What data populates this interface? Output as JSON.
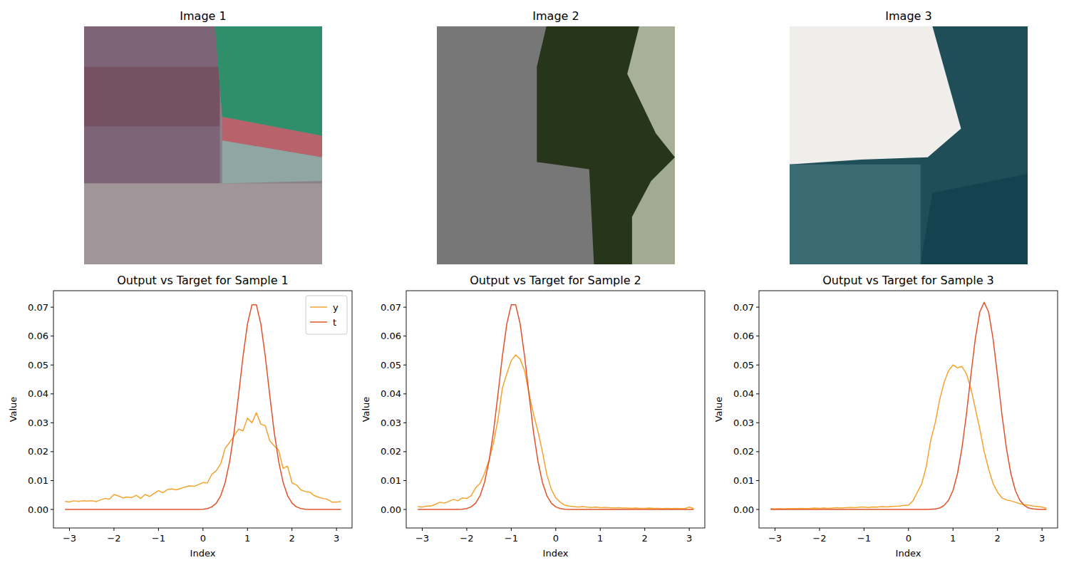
{
  "images": [
    {
      "title": "Image 1"
    },
    {
      "title": "Image 2"
    },
    {
      "title": "Image 3"
    }
  ],
  "chart_data": [
    {
      "type": "line",
      "title": "Output vs Target for Sample 1",
      "x_label": "Index",
      "y_label": "Value",
      "x": [
        -3.1,
        -3,
        -2.9,
        -2.8,
        -2.7,
        -2.6,
        -2.5,
        -2.4,
        -2.3,
        -2.2,
        -2.1,
        -2,
        -1.9,
        -1.8,
        -1.7,
        -1.6,
        -1.5,
        -1.4,
        -1.3,
        -1.2,
        -1.1,
        -1,
        -0.9,
        -0.8,
        -0.7,
        -0.6,
        -0.5,
        -0.4,
        -0.3,
        -0.2,
        -0.1,
        0,
        0.1,
        0.2,
        0.3,
        0.4,
        0.5,
        0.6,
        0.7,
        0.8,
        0.9,
        1,
        1.1,
        1.2,
        1.3,
        1.4,
        1.5,
        1.6,
        1.7,
        1.8,
        1.9,
        2,
        2.1,
        2.2,
        2.3,
        2.4,
        2.5,
        2.6,
        2.7,
        2.8,
        2.9,
        3,
        3.1
      ],
      "series": [
        {
          "name": "y",
          "color": "#f4a32f",
          "values": [
            0.0028,
            0.0026,
            0.003,
            0.0028,
            0.003,
            0.0029,
            0.003,
            0.0027,
            0.0033,
            0.0038,
            0.0036,
            0.0052,
            0.0047,
            0.004,
            0.0043,
            0.0041,
            0.0049,
            0.0038,
            0.0052,
            0.0045,
            0.0055,
            0.0065,
            0.0058,
            0.0069,
            0.0071,
            0.0068,
            0.0073,
            0.0078,
            0.0082,
            0.008,
            0.0086,
            0.0093,
            0.0092,
            0.0122,
            0.0134,
            0.0158,
            0.0212,
            0.0232,
            0.0255,
            0.0278,
            0.0272,
            0.0316,
            0.03,
            0.0335,
            0.0295,
            0.029,
            0.0238,
            0.022,
            0.0205,
            0.0142,
            0.015,
            0.0092,
            0.0085,
            0.0068,
            0.0062,
            0.006,
            0.0048,
            0.0042,
            0.0038,
            0.0035,
            0.0025,
            0.0026,
            0.0027
          ]
        },
        {
          "name": "t",
          "color": "#e1522b",
          "values": [
            0,
            0,
            0,
            0,
            0,
            0,
            0,
            0,
            0,
            0,
            0,
            0,
            0,
            0,
            0,
            0,
            0,
            0,
            0,
            0,
            0,
            0,
            0,
            0,
            0,
            0,
            0,
            0,
            0,
            0,
            0,
            0.0001,
            0.0003,
            0.0009,
            0.0022,
            0.0048,
            0.0094,
            0.0167,
            0.0268,
            0.0396,
            0.053,
            0.0642,
            0.0708,
            0.0708,
            0.0642,
            0.053,
            0.0396,
            0.0268,
            0.0167,
            0.0094,
            0.0048,
            0.0022,
            0.0009,
            0.0003,
            0.0001,
            0,
            0,
            0,
            0,
            0,
            0,
            0,
            0
          ]
        }
      ],
      "xlim": [
        -3.36,
        3.35
      ],
      "ylim": [
        -0.0064,
        0.0757
      ],
      "xticks": [
        {
          "value": -3,
          "label": "−3"
        },
        {
          "value": -2,
          "label": "−2"
        },
        {
          "value": -1,
          "label": "−1"
        },
        0,
        1,
        2,
        3
      ],
      "yticks": [
        {
          "value": 0,
          "label": "0.00"
        },
        0.01,
        0.02,
        0.03,
        0.04,
        0.05,
        0.06,
        0.07
      ],
      "legend": "upper right"
    },
    {
      "type": "line",
      "title": "Output vs Target for Sample 2",
      "x_label": "Index",
      "y_label": "Value",
      "x": [
        -3.1,
        -3,
        -2.9,
        -2.8,
        -2.7,
        -2.6,
        -2.5,
        -2.4,
        -2.3,
        -2.2,
        -2.1,
        -2,
        -1.9,
        -1.8,
        -1.7,
        -1.6,
        -1.5,
        -1.4,
        -1.3,
        -1.2,
        -1.1,
        -1,
        -0.9,
        -0.8,
        -0.7,
        -0.6,
        -0.5,
        -0.4,
        -0.3,
        -0.2,
        -0.1,
        0,
        0.1,
        0.2,
        0.3,
        0.4,
        0.5,
        0.6,
        0.7,
        0.8,
        0.9,
        1,
        1.1,
        1.2,
        1.3,
        1.4,
        1.5,
        1.6,
        1.7,
        1.8,
        1.9,
        2,
        2.1,
        2.2,
        2.3,
        2.4,
        2.5,
        2.6,
        2.7,
        2.8,
        2.9,
        3,
        3.1
      ],
      "series": [
        {
          "name": "y",
          "color": "#f4a32f",
          "values": [
            0.001,
            0.0008,
            0.0012,
            0.0012,
            0.0018,
            0.0025,
            0.0022,
            0.0028,
            0.0035,
            0.003,
            0.004,
            0.0038,
            0.0048,
            0.0075,
            0.009,
            0.0125,
            0.017,
            0.023,
            0.031,
            0.042,
            0.047,
            0.0515,
            0.0535,
            0.052,
            0.048,
            0.04,
            0.033,
            0.027,
            0.02,
            0.012,
            0.007,
            0.004,
            0.0025,
            0.0015,
            0.0012,
            0.001,
            0.0008,
            0.001,
            0.0008,
            0.0007,
            0.0008,
            0.0006,
            0.0007,
            0.0006,
            0.0005,
            0.0006,
            0.0005,
            0.0005,
            0.0004,
            0.0005,
            0.0004,
            0.0004,
            0.0005,
            0.0004,
            0.0004,
            0.0003,
            0.0004,
            0.0003,
            0.0004,
            0.0003,
            0.0003,
            0.0008,
            0.0003
          ]
        },
        {
          "name": "t",
          "color": "#e1522b",
          "values": [
            0,
            0,
            0,
            0,
            0,
            0,
            0,
            0,
            0,
            0,
            0.0001,
            0.0003,
            0.0009,
            0.0022,
            0.0048,
            0.0094,
            0.0167,
            0.0268,
            0.0396,
            0.053,
            0.0642,
            0.0708,
            0.0708,
            0.0642,
            0.053,
            0.0396,
            0.0268,
            0.0167,
            0.0094,
            0.0048,
            0.0022,
            0.0009,
            0.0003,
            0.0001,
            0,
            0,
            0,
            0,
            0,
            0,
            0,
            0,
            0,
            0,
            0,
            0,
            0,
            0,
            0,
            0,
            0,
            0,
            0,
            0,
            0,
            0,
            0,
            0,
            0,
            0,
            0,
            0,
            0
          ]
        }
      ],
      "xlim": [
        -3.36,
        3.35
      ],
      "ylim": [
        -0.0064,
        0.0757
      ],
      "xticks": [
        {
          "value": -3,
          "label": "−3"
        },
        {
          "value": -2,
          "label": "−2"
        },
        {
          "value": -1,
          "label": "−1"
        },
        0,
        1,
        2,
        3
      ],
      "yticks": [
        {
          "value": 0,
          "label": "0.00"
        },
        0.01,
        0.02,
        0.03,
        0.04,
        0.05,
        0.06,
        0.07
      ]
    },
    {
      "type": "line",
      "title": "Output vs Target for Sample 3",
      "x_label": "Index",
      "y_label": "Value",
      "x": [
        -3.1,
        -3,
        -2.9,
        -2.8,
        -2.7,
        -2.6,
        -2.5,
        -2.4,
        -2.3,
        -2.2,
        -2.1,
        -2,
        -1.9,
        -1.8,
        -1.7,
        -1.6,
        -1.5,
        -1.4,
        -1.3,
        -1.2,
        -1.1,
        -1,
        -0.9,
        -0.8,
        -0.7,
        -0.6,
        -0.5,
        -0.4,
        -0.3,
        -0.2,
        -0.1,
        0,
        0.1,
        0.2,
        0.3,
        0.4,
        0.5,
        0.6,
        0.7,
        0.8,
        0.9,
        1,
        1.1,
        1.2,
        1.3,
        1.4,
        1.5,
        1.6,
        1.7,
        1.8,
        1.9,
        2,
        2.1,
        2.2,
        2.3,
        2.4,
        2.5,
        2.6,
        2.7,
        2.8,
        2.9,
        3,
        3.1
      ],
      "series": [
        {
          "name": "y",
          "color": "#f4a32f",
          "values": [
            0.0003,
            0.0002,
            0.0003,
            0.0002,
            0.0003,
            0.0003,
            0.0003,
            0.0004,
            0.0003,
            0.0004,
            0.0005,
            0.0004,
            0.0005,
            0.0004,
            0.0005,
            0.0006,
            0.0005,
            0.0006,
            0.0007,
            0.0006,
            0.0008,
            0.0008,
            0.0007,
            0.0009,
            0.0008,
            0.001,
            0.0009,
            0.001,
            0.0011,
            0.0012,
            0.0014,
            0.0015,
            0.003,
            0.006,
            0.009,
            0.015,
            0.024,
            0.03,
            0.038,
            0.044,
            0.048,
            0.05,
            0.049,
            0.0495,
            0.047,
            0.042,
            0.035,
            0.028,
            0.02,
            0.014,
            0.009,
            0.006,
            0.004,
            0.0033,
            0.003,
            0.0025,
            0.002,
            0.0017,
            0.0015,
            0.0012,
            0.001,
            0.0008,
            0.0004
          ]
        },
        {
          "name": "t",
          "color": "#e1522b",
          "values": [
            0,
            0,
            0,
            0,
            0,
            0,
            0,
            0,
            0,
            0,
            0,
            0,
            0,
            0,
            0,
            0,
            0,
            0,
            0,
            0,
            0,
            0,
            0,
            0,
            0,
            0,
            0,
            0,
            0,
            0,
            0,
            0,
            0,
            0,
            0,
            0,
            0.0001,
            0.0002,
            0.0005,
            0.0014,
            0.0032,
            0.0066,
            0.0124,
            0.0212,
            0.0328,
            0.0462,
            0.059,
            0.0683,
            0.0717,
            0.0683,
            0.059,
            0.0462,
            0.0328,
            0.0212,
            0.0124,
            0.0066,
            0.0032,
            0.0014,
            0.0005,
            0.0002,
            0.0001,
            0,
            0
          ]
        }
      ],
      "xlim": [
        -3.36,
        3.35
      ],
      "ylim": [
        -0.0064,
        0.0757
      ],
      "xticks": [
        {
          "value": -3,
          "label": "−3"
        },
        {
          "value": -2,
          "label": "−2"
        },
        {
          "value": -1,
          "label": "−1"
        },
        0,
        1,
        2,
        3
      ],
      "yticks": [
        {
          "value": 0,
          "label": "0.00"
        },
        0.01,
        0.02,
        0.03,
        0.04,
        0.05,
        0.06,
        0.07
      ]
    }
  ]
}
